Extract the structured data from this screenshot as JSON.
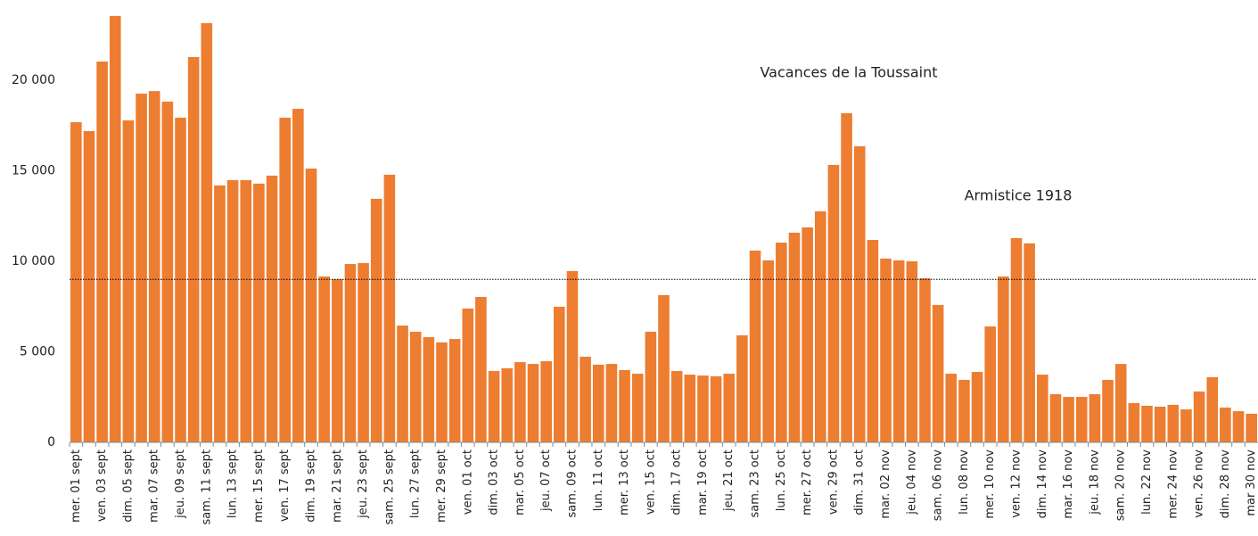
{
  "chart_data": {
    "type": "bar",
    "categories": [
      "mer. 01 sept",
      null,
      "ven. 03 sept",
      null,
      "dim. 05 sept",
      null,
      "mar. 07 sept",
      null,
      "jeu. 09 sept",
      null,
      "sam. 11 sept",
      null,
      "lun. 13 sept",
      null,
      "mer. 15 sept",
      null,
      "ven. 17 sept",
      null,
      "dim. 19 sept",
      null,
      "mar. 21 sept",
      null,
      "jeu. 23 sept",
      null,
      "sam. 25 sept",
      null,
      "lun. 27 sept",
      null,
      "mer. 29 sept",
      null,
      "ven. 01 oct",
      null,
      "dim. 03 oct",
      null,
      "mar. 05 oct",
      null,
      "jeu. 07 oct",
      null,
      "sam. 09 oct",
      null,
      "lun. 11 oct",
      null,
      "mer. 13 oct",
      null,
      "ven. 15 oct",
      null,
      "dim. 17 oct",
      null,
      "mar. 19 oct",
      null,
      "jeu. 21 oct",
      null,
      "sam. 23 oct",
      null,
      "lun. 25 oct",
      null,
      "mer. 27 oct",
      null,
      "ven. 29 oct",
      null,
      "dim. 31 oct",
      null,
      "mar. 02 nov",
      null,
      "jeu. 04 nov",
      null,
      "sam. 06 nov",
      null,
      "lun. 08 nov",
      null,
      "mer. 10 nov",
      null,
      "ven. 12 nov",
      null,
      "dim. 14 nov",
      null,
      "mar. 16 nov",
      null,
      "jeu. 18 nov",
      null,
      "sam. 20 nov",
      null,
      "lun. 22 nov",
      null,
      "mer. 24 nov",
      null,
      "ven. 26 nov",
      null,
      "dim. 28 nov",
      null,
      "mar 30 nov"
    ],
    "values": [
      17680,
      17190,
      21030,
      23550,
      17780,
      19260,
      19400,
      18820,
      17930,
      21280,
      23150,
      14190,
      14480,
      14480,
      14290,
      14730,
      17930,
      18420,
      15120,
      9160,
      9010,
      9850,
      9900,
      13450,
      14780,
      6450,
      6110,
      5810,
      5520,
      5710,
      7390,
      8030,
      3940,
      4090,
      4430,
      4330,
      4480,
      7490,
      9460,
      4730,
      4290,
      4330,
      3990,
      3790,
      6110,
      8130,
      3940,
      3740,
      3690,
      3650,
      3790,
      5910,
      10590,
      10050,
      11030,
      11580,
      11870,
      12760,
      15320,
      18180,
      16350,
      11180,
      10150,
      10050,
      10000,
      9060,
      7590,
      3790,
      3450,
      3890,
      6400,
      9160,
      11280,
      10990,
      3740,
      2660,
      2510,
      2510,
      2660,
      3450,
      4330,
      2170,
      2020,
      1970,
      2070,
      1820,
      2810,
      3600,
      1920,
      1720,
      1580
    ],
    "color": "#ed7d31",
    "ylim": [
      0,
      24430
    ],
    "yticks": [
      0,
      {
        "value": 5000,
        "label": "5 000"
      },
      {
        "value": 10000,
        "label": "10 000"
      },
      {
        "value": 15000,
        "label": "15 000"
      },
      {
        "value": 20000,
        "label": "20 000"
      }
    ],
    "reference_line": 9000,
    "annotations": [
      "Vacances de la Toussaint",
      "Armistice 1918"
    ]
  }
}
